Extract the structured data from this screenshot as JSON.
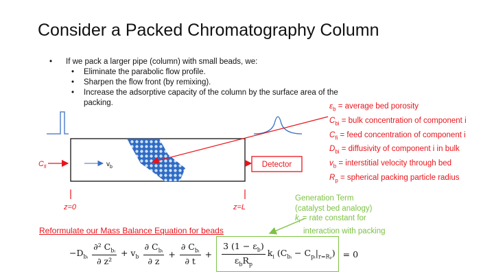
{
  "title": "Consider a Packed Chromatography Column",
  "bullet": "If we pack a larger pipe (column) with small beads, we:",
  "sub_bullets": [
    "Eliminate the parabolic flow profile.",
    "Sharpen the flow front (by remixing).",
    "Increase the adsorptive capacity of the column by the surface area of the",
    "packing."
  ],
  "definitions": [
    {
      "sym": "ε",
      "sub": "b",
      "text": " = average bed porosity"
    },
    {
      "sym": "C",
      "sub": "bi",
      "text": " = bulk concentration of component i"
    },
    {
      "sym": "C",
      "sub": "fi",
      "text": " = feed concentration of component i"
    },
    {
      "sym": "D",
      "sub": "bi",
      "text": " = diffusivity of component i in bulk"
    },
    {
      "sym": "v",
      "sub": "b",
      "text": " = interstitial velocity through bed"
    },
    {
      "sym": "R",
      "sub": "p",
      "text": " = spherical packing particle radius"
    }
  ],
  "diagram": {
    "feed": {
      "sym": "C",
      "sub": "fi"
    },
    "velocity": {
      "sym": "v",
      "sub": "b"
    },
    "detector": "Detector",
    "z0": "z=0",
    "zL": "z=L"
  },
  "generation": {
    "lines": [
      "Generation Term",
      "(catalyst bed analogy)"
    ],
    "k": {
      "sym": "k",
      "sub": "i",
      "text": " = rate constant for"
    },
    "last": "interaction with packing"
  },
  "reformulate": "Reformulate our Mass Balance Equation for beads",
  "equation": {
    "items": [
      {
        "runs": [
          {
            "t": "−D",
            "sub": "bᵢ"
          }
        ]
      },
      {
        "num": [
          {
            "t": "∂² C",
            "sub": "bᵢ"
          }
        ],
        "den": [
          {
            "t": "∂ z²"
          }
        ]
      },
      {
        "runs": [
          {
            "t": "+ v",
            "sub": "b"
          }
        ]
      },
      {
        "num": [
          {
            "t": "∂ C",
            "sub": "bᵢ"
          }
        ],
        "den": [
          {
            "t": "∂ z"
          }
        ]
      },
      {
        "runs": [
          {
            "t": "+"
          }
        ]
      },
      {
        "num": [
          {
            "t": "∂ C",
            "sub": "bᵢ"
          }
        ],
        "den": [
          {
            "t": "∂ t"
          }
        ]
      },
      {
        "runs": [
          {
            "t": "+"
          }
        ]
      },
      {
        "boxed": true,
        "num": [
          {
            "t": "3 (1 − ε",
            "sub": "b"
          },
          {
            "t": ")"
          }
        ],
        "den": [
          {
            "t": "ε",
            "sub": "b"
          },
          {
            "t": "R",
            "sub": "p"
          }
        ],
        "after": [
          {
            "t": "k",
            "sub": "i"
          },
          {
            "t": " (C",
            "sub": "bᵢ"
          },
          {
            "t": " − C",
            "sub": "pᵢ"
          },
          {
            "t": "|",
            "sub": "r=Rₚ"
          },
          {
            "t": ")"
          }
        ]
      },
      {
        "runs": [
          {
            "t": "= 0"
          }
        ]
      }
    ]
  }
}
